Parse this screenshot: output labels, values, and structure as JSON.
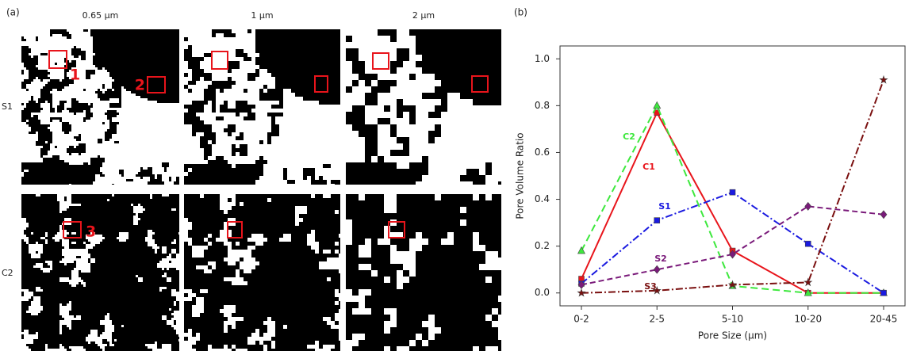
{
  "panels": {
    "a": {
      "label": "(a)",
      "columns": [
        "0.65 µm",
        "1 µm",
        "2 µm"
      ],
      "rows": [
        "S1",
        "C2"
      ],
      "markers": [
        "1",
        "2",
        "3"
      ]
    },
    "b": {
      "label": "(b)"
    }
  },
  "chart_data": {
    "type": "line",
    "x_label": "Pore Size (µm)",
    "y_label": "Pore Volume Ratio",
    "categories": [
      "0-2",
      "2-5",
      "5-10",
      "10-20",
      "20-45"
    ],
    "series": [
      {
        "name": "C1",
        "color": "#e8141b",
        "values": [
          0.06,
          0.77,
          0.18,
          0.0,
          0.0
        ]
      },
      {
        "name": "C2",
        "color": "#3de83d",
        "values": [
          0.18,
          0.8,
          0.03,
          0.0,
          0.0
        ]
      },
      {
        "name": "S1",
        "color": "#1a1ae0",
        "values": [
          0.04,
          0.31,
          0.43,
          0.21,
          0.0
        ]
      },
      {
        "name": "S2",
        "color": "#7a1a7a",
        "values": [
          0.035,
          0.1,
          0.165,
          0.37,
          0.335
        ]
      },
      {
        "name": "S3",
        "color": "#7a0f0f",
        "values": [
          0.0,
          0.01,
          0.035,
          0.045,
          0.91
        ]
      }
    ],
    "ylim": [
      -0.055,
      1.055
    ],
    "yticks": [
      {
        "value": 0,
        "label": "0.0"
      },
      0.2,
      0.4,
      0.6,
      0.8,
      {
        "value": 1,
        "label": "1.0"
      }
    ]
  }
}
